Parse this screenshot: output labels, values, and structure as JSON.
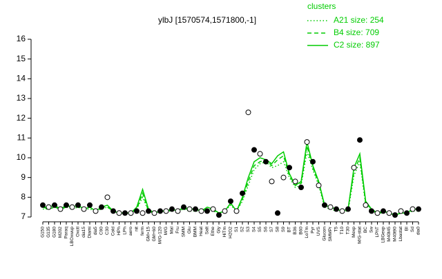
{
  "chart_data": {
    "type": "line",
    "title": "ylbJ [1570574,1571800,-1]",
    "legend_title": "clusters",
    "legend_position": "top-right",
    "categories": [
      "G150",
      "G135",
      "G180",
      "M202",
      "Paraq",
      "LBOxwup",
      "Oxctl",
      "dia15",
      "Diami",
      "dia5",
      "C90",
      "C30",
      "Cold",
      "HPh",
      "LPh",
      "aero",
      "nit",
      "ferm",
      "GM+15",
      "GM+60",
      "M/G-120",
      "M/G",
      "Mal",
      "Fru",
      "SMM",
      "Glu",
      "BMM",
      "Heat",
      "Salt",
      "Ethe",
      "Gly",
      "HiTm",
      "H2O2",
      "S1",
      "S2",
      "S3",
      "S4",
      "S5",
      "S6",
      "S7",
      "S8",
      "S9",
      "BT",
      "B36",
      "B60",
      "LoTm",
      "Pyr",
      "UVS",
      "Glucon",
      "SMMPr",
      "T5",
      "T10",
      "T30",
      "Mexp",
      "M/G-stat",
      "BC",
      "Sw",
      "LPhT",
      "LBGexp",
      "M40t45",
      "M40t90",
      "Lbastat",
      "BI",
      "Sd",
      "dia0"
    ],
    "series": [
      {
        "name": "A21 size: 254",
        "color": "#00cc00",
        "style": "dotted",
        "values": [
          7.4,
          7.4,
          7.5,
          7.4,
          7.5,
          7.4,
          7.5,
          7.4,
          7.4,
          7.3,
          7.4,
          7.5,
          7.3,
          7.2,
          7.2,
          7.2,
          7.4,
          8.0,
          7.3,
          7.2,
          7.3,
          7.3,
          7.3,
          7.3,
          7.4,
          7.3,
          7.3,
          7.3,
          7.4,
          7.3,
          7.2,
          7.3,
          7.6,
          7.3,
          7.8,
          8.6,
          9.4,
          9.7,
          9.8,
          9.5,
          9.6,
          9.8,
          9.0,
          8.5,
          8.6,
          10.3,
          9.4,
          8.6,
          7.5,
          7.4,
          7.3,
          7.3,
          7.3,
          9.1,
          9.8,
          7.6,
          7.3,
          7.2,
          7.2,
          7.2,
          7.1,
          7.2,
          7.2,
          7.3,
          7.3
        ]
      },
      {
        "name": "B4 size: 709",
        "color": "#00cc00",
        "style": "dashed",
        "values": [
          7.5,
          7.4,
          7.5,
          7.4,
          7.5,
          7.5,
          7.5,
          7.4,
          7.5,
          7.3,
          7.5,
          7.5,
          7.3,
          7.2,
          7.2,
          7.2,
          7.4,
          8.2,
          7.3,
          7.2,
          7.3,
          7.3,
          7.4,
          7.3,
          7.4,
          7.4,
          7.4,
          7.3,
          7.4,
          7.4,
          7.2,
          7.3,
          7.7,
          7.3,
          7.9,
          8.8,
          9.6,
          9.8,
          9.9,
          9.6,
          9.9,
          10.1,
          9.1,
          8.6,
          8.7,
          10.6,
          9.5,
          8.7,
          7.6,
          7.5,
          7.4,
          7.3,
          7.4,
          9.3,
          10.0,
          7.7,
          7.4,
          7.2,
          7.3,
          7.2,
          7.1,
          7.2,
          7.2,
          7.4,
          7.4
        ]
      },
      {
        "name": "C2 size: 897",
        "color": "#00cc00",
        "style": "solid",
        "values": [
          7.5,
          7.5,
          7.6,
          7.4,
          7.6,
          7.5,
          7.6,
          7.4,
          7.5,
          7.3,
          7.5,
          7.6,
          7.3,
          7.2,
          7.2,
          7.2,
          7.5,
          8.4,
          7.4,
          7.2,
          7.3,
          7.3,
          7.4,
          7.3,
          7.5,
          7.4,
          7.4,
          7.3,
          7.5,
          7.4,
          7.2,
          7.3,
          7.7,
          7.3,
          8.0,
          9.0,
          9.8,
          10.0,
          9.9,
          9.7,
          10.1,
          10.3,
          9.2,
          8.6,
          8.8,
          10.8,
          9.6,
          8.8,
          7.6,
          7.5,
          7.4,
          7.3,
          7.4,
          9.5,
          10.2,
          7.8,
          7.4,
          7.2,
          7.3,
          7.2,
          7.1,
          7.2,
          7.2,
          7.4,
          7.4
        ]
      }
    ],
    "points": {
      "color": "#000000",
      "values": [
        7.6,
        7.5,
        7.6,
        7.4,
        7.6,
        7.5,
        7.6,
        7.4,
        7.6,
        7.3,
        7.5,
        8.0,
        7.3,
        7.2,
        7.2,
        7.2,
        7.3,
        7.2,
        7.3,
        7.2,
        7.3,
        7.3,
        7.4,
        7.3,
        7.5,
        7.4,
        7.4,
        7.3,
        7.3,
        7.4,
        7.1,
        7.3,
        7.8,
        7.3,
        8.2,
        12.3,
        10.4,
        10.2,
        9.8,
        8.8,
        7.2,
        9.0,
        9.5,
        8.8,
        8.5,
        10.8,
        9.8,
        8.6,
        7.6,
        7.5,
        7.4,
        7.3,
        7.4,
        9.5,
        10.9,
        7.6,
        7.3,
        7.2,
        7.3,
        7.2,
        7.1,
        7.3,
        7.2,
        7.4,
        7.4
      ]
    },
    "ylim": [
      7,
      16
    ],
    "yticks": [
      7,
      8,
      9,
      10,
      11,
      12,
      13,
      14,
      15,
      16
    ]
  }
}
